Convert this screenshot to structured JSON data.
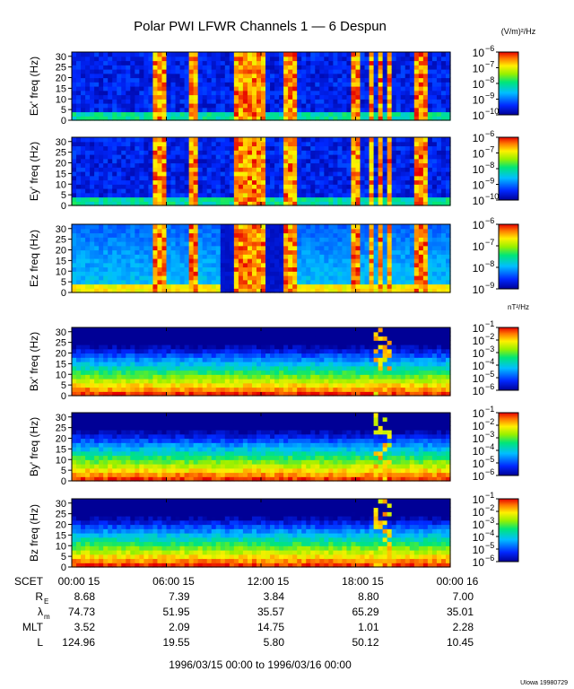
{
  "title": "Polar PWI LFWR Channels 1 — 6 Despun",
  "footer_date_range": "1996/03/15 00:00 to 1996/03/16 00:00",
  "credit": "UIowa 19980729",
  "colorbar_units": {
    "electric": "(V/m)²/Hz",
    "magnetic": "nT²/Hz"
  },
  "chart_data": {
    "type": "heatmap",
    "x_ticks": [
      "00:00 15",
      "06:00 15",
      "12:00 15",
      "18:00 15",
      "00:00 16"
    ],
    "x_range_hours": [
      0,
      24
    ],
    "panels": [
      {
        "ylabel": "Ex' freq (Hz)",
        "y_ticks": [
          0,
          5,
          10,
          15,
          20,
          25,
          30
        ],
        "ylim": [
          0,
          32
        ],
        "cbar_exponents": [
          -10,
          -9,
          -8,
          -7,
          -6
        ],
        "kind": "electric"
      },
      {
        "ylabel": "Ey' freq (Hz)",
        "y_ticks": [
          0,
          5,
          10,
          15,
          20,
          25,
          30
        ],
        "ylim": [
          0,
          32
        ],
        "cbar_exponents": [
          -10,
          -9,
          -8,
          -7,
          -6
        ],
        "kind": "electric"
      },
      {
        "ylabel": "Ez freq (Hz)",
        "y_ticks": [
          0,
          5,
          10,
          15,
          20,
          25,
          30
        ],
        "ylim": [
          0,
          32
        ],
        "cbar_exponents": [
          -9,
          -8,
          -7,
          -6
        ],
        "kind": "ez"
      },
      {
        "ylabel": "Bx' freq (Hz)",
        "y_ticks": [
          0,
          5,
          10,
          15,
          20,
          25,
          30
        ],
        "ylim": [
          0,
          32
        ],
        "cbar_exponents": [
          -6,
          -5,
          -4,
          -3,
          -2,
          -1
        ],
        "kind": "magnetic"
      },
      {
        "ylabel": "By' freq (Hz)",
        "y_ticks": [
          0,
          5,
          10,
          15,
          20,
          25,
          30
        ],
        "ylim": [
          0,
          32
        ],
        "cbar_exponents": [
          -6,
          -5,
          -4,
          -3,
          -2,
          -1
        ],
        "kind": "magnetic"
      },
      {
        "ylabel": "Bz freq (Hz)",
        "y_ticks": [
          0,
          5,
          10,
          15,
          20,
          25,
          30
        ],
        "ylim": [
          0,
          32
        ],
        "cbar_exponents": [
          -6,
          -5,
          -4,
          -3,
          -2,
          -1
        ],
        "kind": "magnetic"
      }
    ],
    "ephemeris": [
      {
        "label": "SCET",
        "values": [
          "00:00 15",
          "06:00 15",
          "12:00 15",
          "18:00 15",
          "00:00 16"
        ]
      },
      {
        "label": "R_E",
        "values": [
          "8.68",
          "7.39",
          "3.84",
          "8.80",
          "7.00"
        ]
      },
      {
        "label": "λ_m",
        "values": [
          "74.73",
          "51.95",
          "35.57",
          "65.29",
          "35.01"
        ]
      },
      {
        "label": "MLT",
        "values": [
          "3.52",
          "2.09",
          "14.75",
          "1.01",
          "2.28"
        ]
      },
      {
        "label": "L",
        "values": [
          "124.96",
          "19.55",
          "5.80",
          "50.12",
          "10.45"
        ]
      }
    ]
  }
}
